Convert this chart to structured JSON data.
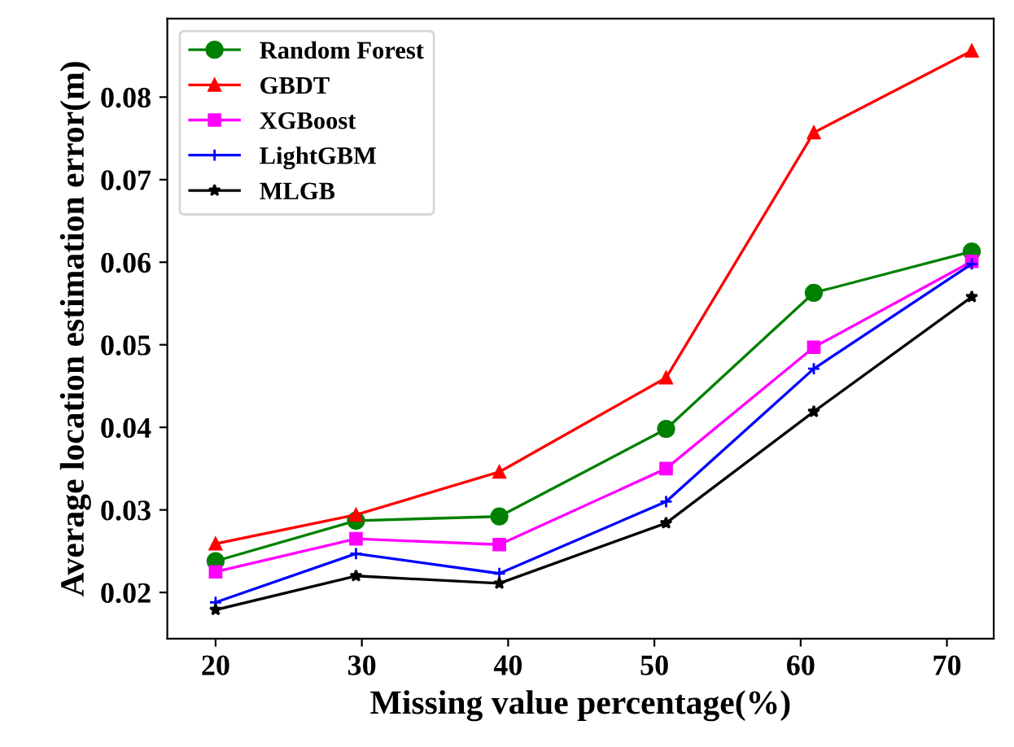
{
  "chart_data": {
    "type": "line",
    "xlabel": "Missing value percentage(%)",
    "ylabel": "Average location estimation error(m)",
    "x": [
      20,
      29.6,
      39.4,
      50.8,
      60.9,
      71.7
    ],
    "series": [
      {
        "name": "Random Forest",
        "color": "#008000",
        "marker": "circle",
        "values": [
          0.0238,
          0.0287,
          0.0292,
          0.0398,
          0.0563,
          0.0613
        ]
      },
      {
        "name": "GBDT",
        "color": "#ff0000",
        "marker": "triangle",
        "values": [
          0.0259,
          0.0294,
          0.0346,
          0.046,
          0.0757,
          0.0856
        ]
      },
      {
        "name": "XGBoost",
        "color": "#ff00ff",
        "marker": "square",
        "values": [
          0.0225,
          0.0265,
          0.0258,
          0.035,
          0.0497,
          0.0601
        ]
      },
      {
        "name": "LightGBM",
        "color": "#0000ff",
        "marker": "cross",
        "values": [
          0.0188,
          0.0247,
          0.0223,
          0.031,
          0.0471,
          0.0598
        ]
      },
      {
        "name": "MLGB",
        "color": "#000000",
        "marker": "star",
        "values": [
          0.0179,
          0.022,
          0.0211,
          0.0284,
          0.0419,
          0.0558
        ]
      }
    ],
    "xlim": [
      16.7,
      73.2
    ],
    "ylim": [
      0.0144,
      0.0895
    ],
    "xticks": [
      20,
      30,
      40,
      50,
      60,
      70
    ],
    "yticks": [
      0.02,
      0.03,
      0.04,
      0.05,
      0.06,
      0.07,
      0.08
    ],
    "legend": "top left",
    "grid": false,
    "line_style": "solid"
  }
}
